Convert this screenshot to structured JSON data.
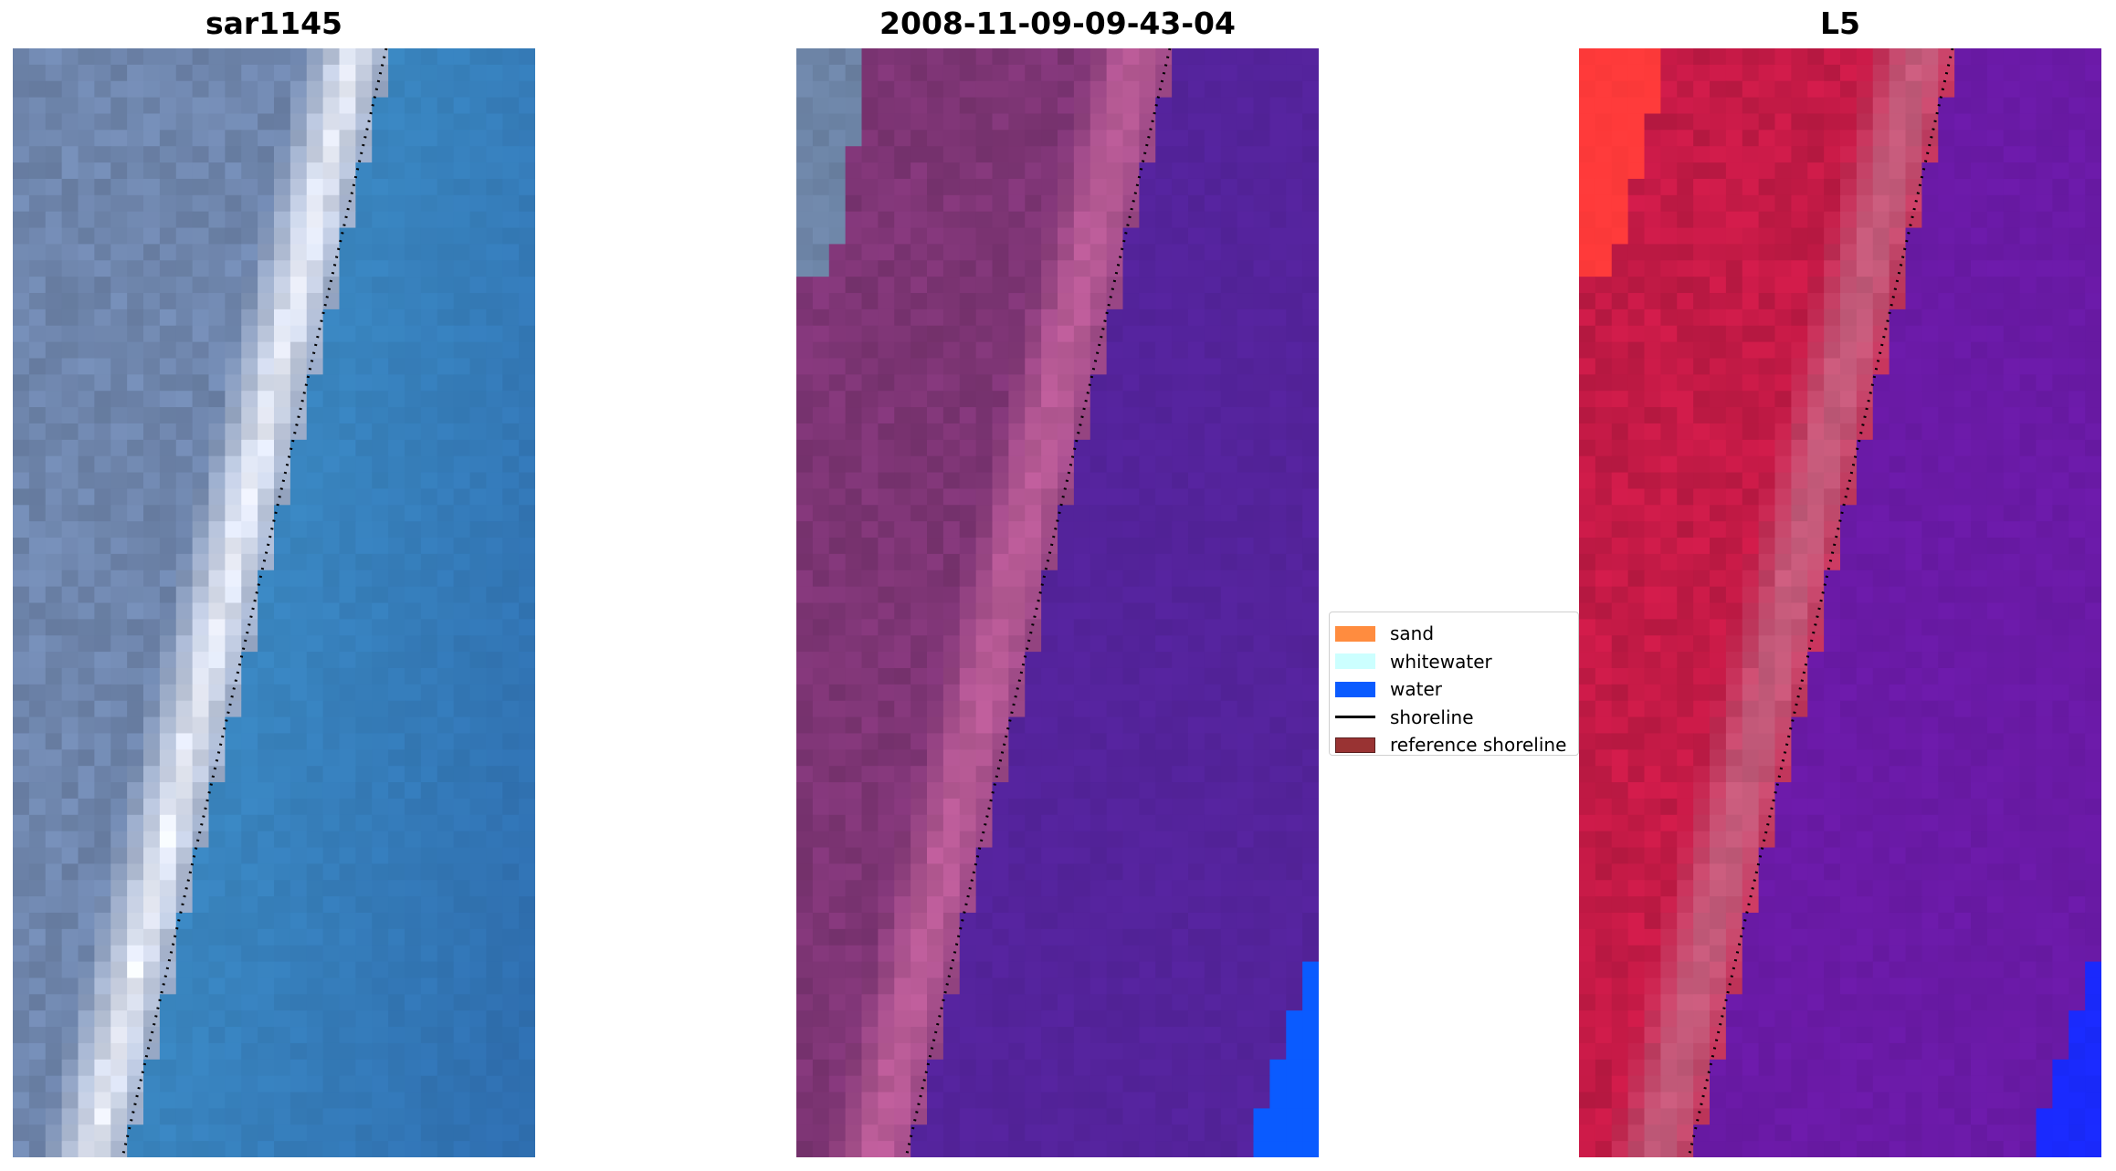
{
  "panels": [
    {
      "title": "sar1145",
      "style": "rgb"
    },
    {
      "title": "2008-11-09-09-43-04",
      "style": "classified"
    },
    {
      "title": "L5",
      "style": "index"
    }
  ],
  "legend": {
    "items": [
      {
        "label": "sand",
        "color": "#ff8c3f",
        "kind": "patch"
      },
      {
        "label": "whitewater",
        "color": "#ccffff",
        "kind": "patch"
      },
      {
        "label": "water",
        "color": "#0a5bff",
        "kind": "patch"
      },
      {
        "label": "shoreline",
        "color": "#000000",
        "kind": "line"
      },
      {
        "label": "reference shoreline",
        "color": "#993333",
        "kind": "patch"
      }
    ]
  },
  "colors": {
    "rgb_water": "#3a86c0",
    "rgb_land": "#6f86ad",
    "rgb_whitewater": "#eef1fb",
    "classified_land": "#7e3575",
    "classified_band": "#b75a95",
    "classified_water": "#54239b",
    "classified_blue": "#0a5bff",
    "classified_greyblue": "#6d84a6",
    "index_land": "#c41a46",
    "index_band": "#c45a7a",
    "index_water": "#6a1aa6",
    "index_red": "#ff3a3a",
    "index_blue": "#1a2aff",
    "shoreline": "#000000"
  }
}
